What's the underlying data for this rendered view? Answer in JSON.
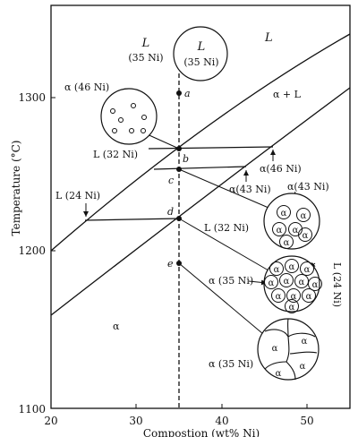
{
  "axes": {
    "ylabel": "Temperature (°C)",
    "xlabel": "Compostion (wt% Ni)",
    "x_ticks": [
      "20",
      "30",
      "40",
      "50"
    ],
    "y_ticks": [
      "1300",
      "1200",
      "1100"
    ]
  },
  "phase_regions": {
    "liquid": "L",
    "two_phase": "α + L",
    "solid": "α"
  },
  "points": {
    "a": "a",
    "b": "b",
    "c": "c",
    "d": "d",
    "e": "e"
  },
  "labels": {
    "circle_a_L": "L",
    "circle_a_comp": "(35 Ni)",
    "left_L": "L",
    "left_L_comp": "(35 Ni)",
    "alpha_46_left": "α (46 Ni)",
    "L_32_top": "L (32 Ni)",
    "L_24_left": "L (24 Ni)",
    "alpha_46_right": "α(46 Ni)",
    "alpha_43_right": "α(43 Ni)",
    "alpha_43_top": "α(43 Ni)",
    "L_32_mid": "L (32 Ni)",
    "L_24_vertical": "L (24 Ni)",
    "alpha_35_mid": "α (35 Ni)",
    "alpha_35_bottom": "α (35 Ni)"
  },
  "grain_symbol": "α"
}
